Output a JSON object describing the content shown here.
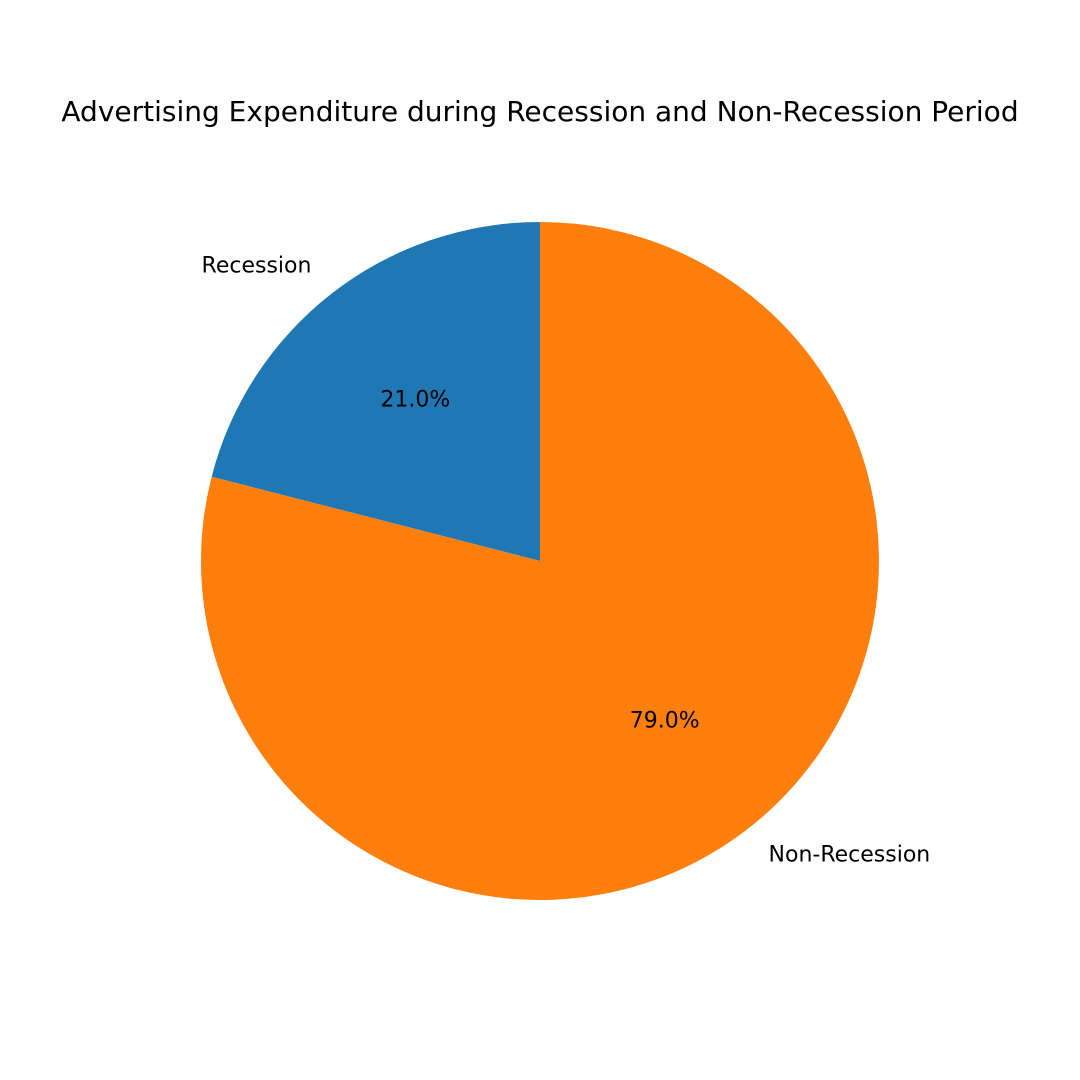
{
  "chart_data": {
    "type": "pie",
    "title": "Advertising Expenditure during Recession and Non-Recession Period",
    "categories": [
      "Recession",
      "Non-Recession"
    ],
    "values": [
      21.0,
      79.0
    ],
    "value_labels": [
      "21.0%",
      "79.0%"
    ],
    "colors": [
      "#1f77b4",
      "#ff7f0e"
    ]
  }
}
